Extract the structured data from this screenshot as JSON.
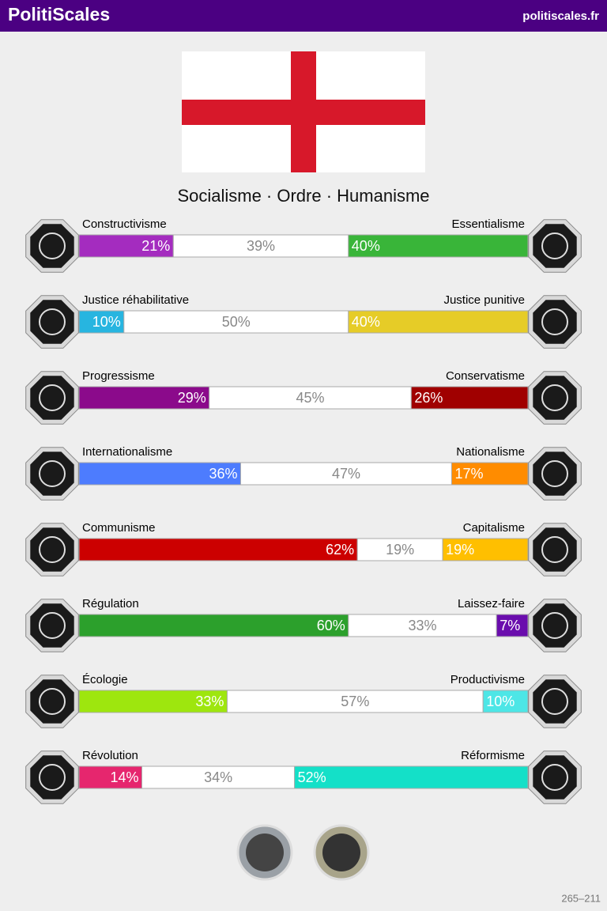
{
  "header": {
    "title": "PolitiScales",
    "site": "politiscales.fr"
  },
  "subtitle": "Socialisme · Ordre · Humanisme",
  "axes": [
    {
      "left": "Constructivisme",
      "right": "Essentialisme",
      "segments": [
        {
          "value": 21,
          "label": "21%"
        },
        {
          "value": 39,
          "label": "39%"
        },
        {
          "value": 40,
          "label": "40%"
        }
      ],
      "colors": [
        "#a42cbf",
        "#39b539"
      ]
    },
    {
      "left": "Justice réhabilitative",
      "right": "Justice punitive",
      "segments": [
        {
          "value": 10,
          "label": "10%"
        },
        {
          "value": 50,
          "label": "50%"
        },
        {
          "value": 40,
          "label": "40%"
        }
      ],
      "colors": [
        "#27b5e0",
        "#e6cc27"
      ]
    },
    {
      "left": "Progressisme",
      "right": "Conservatisme",
      "segments": [
        {
          "value": 29,
          "label": "29%"
        },
        {
          "value": 45,
          "label": "45%"
        },
        {
          "value": 26,
          "label": "26%"
        }
      ],
      "colors": [
        "#8b0a8b",
        "#a00000"
      ]
    },
    {
      "left": "Internationalisme",
      "right": "Nationalisme",
      "segments": [
        {
          "value": 36,
          "label": "36%"
        },
        {
          "value": 47,
          "label": "47%"
        },
        {
          "value": 17,
          "label": "17%"
        }
      ],
      "colors": [
        "#4d7cfe",
        "#ff8c00"
      ]
    },
    {
      "left": "Communisme",
      "right": "Capitalisme",
      "segments": [
        {
          "value": 62,
          "label": "62%"
        },
        {
          "value": 19,
          "label": "19%"
        },
        {
          "value": 19,
          "label": "19%"
        }
      ],
      "colors": [
        "#cc0000",
        "#ffbf00"
      ]
    },
    {
      "left": "Régulation",
      "right": "Laissez-faire",
      "segments": [
        {
          "value": 60,
          "label": "60%"
        },
        {
          "value": 33,
          "label": "33%"
        },
        {
          "value": 7,
          "label": "7%"
        }
      ],
      "colors": [
        "#2ca02c",
        "#6a0dad"
      ]
    },
    {
      "left": "Écologie",
      "right": "Productivisme",
      "segments": [
        {
          "value": 33,
          "label": "33%"
        },
        {
          "value": 57,
          "label": "57%"
        },
        {
          "value": 10,
          "label": "10%"
        }
      ],
      "colors": [
        "#9ee60e",
        "#4de6e6"
      ]
    },
    {
      "left": "Révolution",
      "right": "Réformisme",
      "segments": [
        {
          "value": 14,
          "label": "14%"
        },
        {
          "value": 34,
          "label": "34%"
        },
        {
          "value": 52,
          "label": "52%"
        }
      ],
      "colors": [
        "#e6266e",
        "#14e0c8"
      ]
    }
  ],
  "footer": "265–211"
}
